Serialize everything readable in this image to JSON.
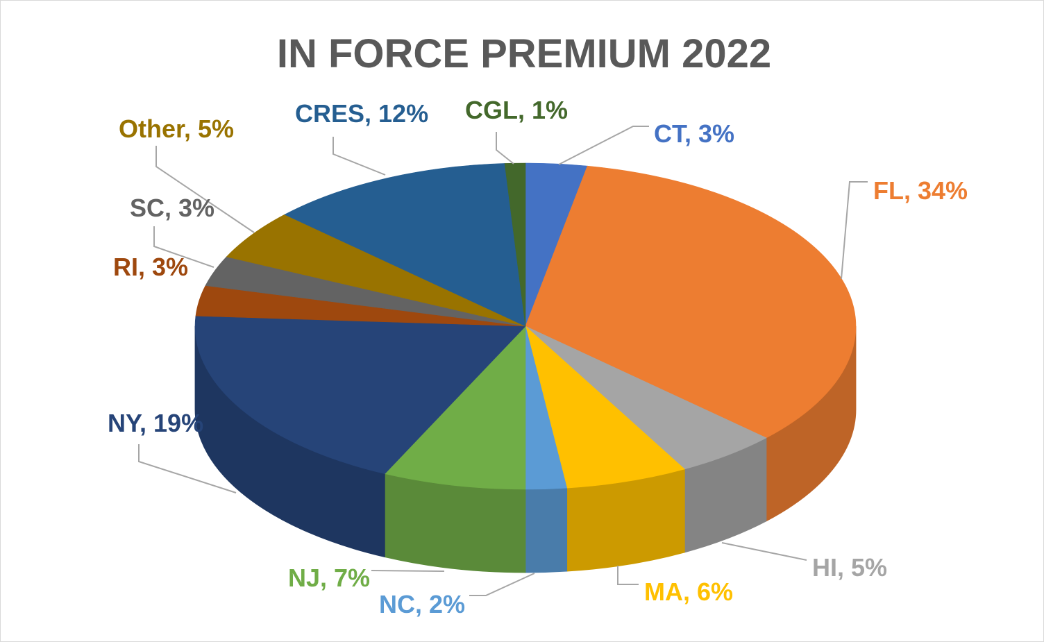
{
  "chart_data": {
    "type": "pie",
    "title": "IN FORCE PREMIUM 2022",
    "view": "3d",
    "legend": "none",
    "slices": [
      {
        "label": "CT",
        "value": 3,
        "data_label": "CT, 3%",
        "color": "#4472C4",
        "label_color": "#4472C4"
      },
      {
        "label": "FL",
        "value": 34,
        "data_label": "FL, 34%",
        "color": "#ED7D31",
        "label_color": "#ED7D31"
      },
      {
        "label": "HI",
        "value": 5,
        "data_label": "HI, 5%",
        "color": "#A5A5A5",
        "label_color": "#A5A5A5"
      },
      {
        "label": "MA",
        "value": 6,
        "data_label": "MA, 6%",
        "color": "#FFC000",
        "label_color": "#FFC000"
      },
      {
        "label": "NC",
        "value": 2,
        "data_label": "NC, 2%",
        "color": "#5B9BD5",
        "label_color": "#5B9BD5"
      },
      {
        "label": "NJ",
        "value": 7,
        "data_label": "NJ, 7%",
        "color": "#70AD47",
        "label_color": "#70AD47"
      },
      {
        "label": "NY",
        "value": 19,
        "data_label": "NY, 19%",
        "color": "#264478",
        "label_color": "#264478"
      },
      {
        "label": "RI",
        "value": 3,
        "data_label": "RI, 3%",
        "color": "#9E480E",
        "label_color": "#9E480E"
      },
      {
        "label": "SC",
        "value": 3,
        "data_label": "SC, 3%",
        "color": "#636363",
        "label_color": "#636363"
      },
      {
        "label": "Other",
        "value": 5,
        "data_label": "Other, 5%",
        "color": "#997300",
        "label_color": "#997300"
      },
      {
        "label": "CRES",
        "value": 12,
        "data_label": "CRES, 12%",
        "color": "#255E91",
        "label_color": "#255E91"
      },
      {
        "label": "CGL",
        "value": 1,
        "data_label": "CGL, 1%",
        "color": "#43682B",
        "label_color": "#43682B"
      }
    ]
  }
}
